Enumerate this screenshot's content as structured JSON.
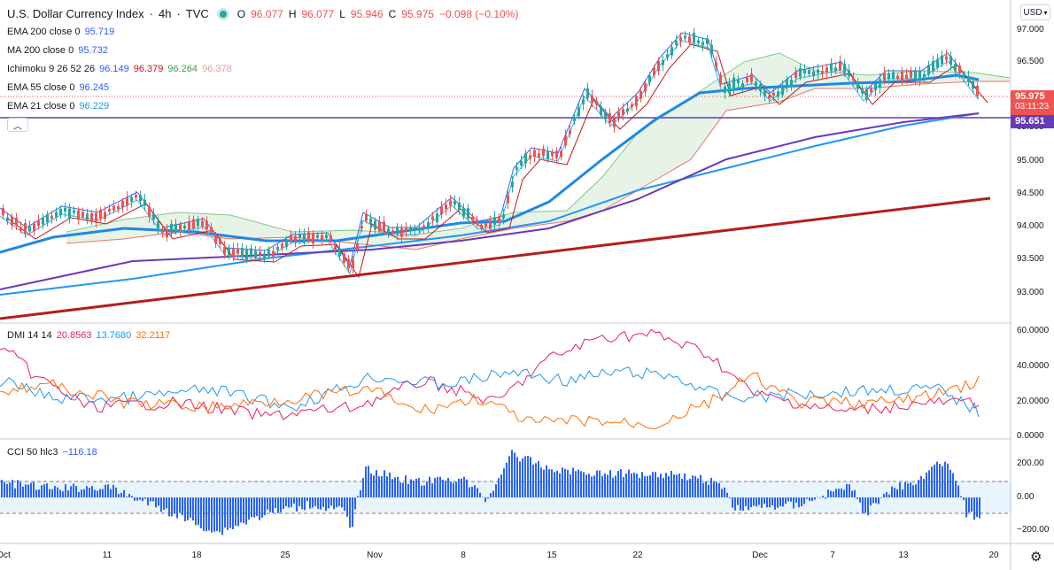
{
  "header": {
    "symbol": "U.S. Dollar Currency Index",
    "interval": "4h",
    "exchange": "TVC",
    "status_color": "#26a69a",
    "ohlc": {
      "o_label": "O",
      "o": "96.077",
      "h_label": "H",
      "h": "96.077",
      "l_label": "L",
      "l": "95.946",
      "c_label": "C",
      "c": "95.975",
      "change": "−0.098 (−0.10%)"
    }
  },
  "indicators": [
    {
      "label": "EMA 200 close 0",
      "value": "95.719",
      "color": "#2962ff"
    },
    {
      "label": "MA 200 close 0",
      "value": "95.732",
      "color": "#2962ff"
    },
    {
      "label": "Ichimoku 9 26 52 26",
      "values": [
        "96.149",
        "96.379",
        "96.264",
        "96.378"
      ],
      "colors": [
        "#2962ff",
        "#b71c1c",
        "#43a047",
        "#ef9a9a"
      ]
    },
    {
      "label": "EMA 55 close 0",
      "value": "96.245",
      "color": "#2962ff"
    },
    {
      "label": "EMA 21 close 0",
      "value": "96.229",
      "color": "#2196f3"
    }
  ],
  "currency_button": {
    "label": "USD",
    "icon": "chevron-down-icon"
  },
  "collapse_button": {
    "icon": "chevron-up-icon"
  },
  "price_axis": {
    "labels": [
      "97.000",
      "96.500",
      "95.500",
      "95.000",
      "94.500",
      "94.000",
      "93.500",
      "93.000"
    ]
  },
  "price_tags": {
    "last": "95.975",
    "countdown": "03:11:23",
    "line": "95.651",
    "last_color": "#ef5350",
    "line_color": "#673ab7"
  },
  "dmi": {
    "label": "DMI 14 14",
    "values": [
      "20.8563",
      "13.7680",
      "32.2117"
    ],
    "colors": [
      "#e91e63",
      "#2196f3",
      "#ff6d00"
    ],
    "axis_labels": [
      "60.0000",
      "40.0000",
      "20.0000",
      "0.0000"
    ]
  },
  "cci": {
    "label": "CCI 50 hlc3",
    "value": "−116.18",
    "color": "#2962ff",
    "axis_labels": [
      "200.00",
      "0.00",
      "−200.00"
    ]
  },
  "time_axis": {
    "labels": [
      "Oct",
      "11",
      "18",
      "25",
      "Nov",
      "8",
      "15",
      "22",
      "Dec",
      "7",
      "13",
      "20"
    ]
  },
  "footer": {
    "settings_icon": "gear-icon"
  }
}
